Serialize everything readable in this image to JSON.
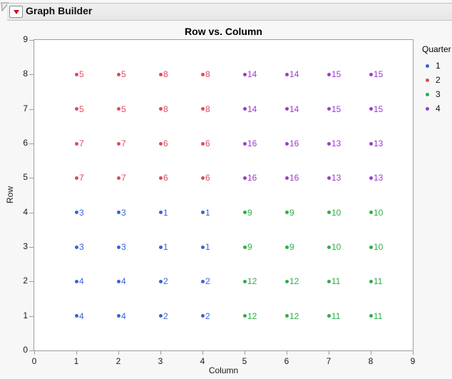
{
  "window": {
    "title": "Graph Builder",
    "disclosure_icon": "open-outline-triangle",
    "menu_icon": "red-triangle"
  },
  "colors": {
    "page_bg": "#f7f7f7",
    "header_bg": "#ebebeb",
    "plot_bg": "#ffffff",
    "axis": "#9e9e9e",
    "text": "#1a1a1a"
  },
  "chart_data": {
    "type": "scatter",
    "title": "Row vs. Column",
    "xlabel": "Column",
    "ylabel": "Row",
    "xlim": [
      0,
      9
    ],
    "ylim": [
      0,
      9
    ],
    "xticks": [
      0,
      1,
      2,
      3,
      4,
      5,
      6,
      7,
      8,
      9
    ],
    "yticks": [
      0,
      1,
      2,
      3,
      4,
      5,
      6,
      7,
      8,
      9
    ],
    "grid": false,
    "legend": {
      "title": "Quarter",
      "position": "right",
      "entries": [
        {
          "label": "1",
          "color": "#3a63d4"
        },
        {
          "label": "2",
          "color": "#dd4b5c"
        },
        {
          "label": "3",
          "color": "#2fae49"
        },
        {
          "label": "4",
          "color": "#9d3ccc"
        }
      ]
    },
    "points_format": [
      "x",
      "y",
      "label"
    ],
    "series": [
      {
        "name": "1",
        "color": "#3a63d4",
        "points": [
          [
            1,
            4,
            "3"
          ],
          [
            2,
            4,
            "3"
          ],
          [
            3,
            4,
            "1"
          ],
          [
            4,
            4,
            "1"
          ],
          [
            1,
            3,
            "3"
          ],
          [
            2,
            3,
            "3"
          ],
          [
            3,
            3,
            "1"
          ],
          [
            4,
            3,
            "1"
          ],
          [
            1,
            2,
            "4"
          ],
          [
            2,
            2,
            "4"
          ],
          [
            3,
            2,
            "2"
          ],
          [
            4,
            2,
            "2"
          ],
          [
            1,
            1,
            "4"
          ],
          [
            2,
            1,
            "4"
          ],
          [
            3,
            1,
            "2"
          ],
          [
            4,
            1,
            "2"
          ]
        ]
      },
      {
        "name": "2",
        "color": "#dd4b5c",
        "points": [
          [
            1,
            8,
            "5"
          ],
          [
            2,
            8,
            "5"
          ],
          [
            3,
            8,
            "8"
          ],
          [
            4,
            8,
            "8"
          ],
          [
            1,
            7,
            "5"
          ],
          [
            2,
            7,
            "5"
          ],
          [
            3,
            7,
            "8"
          ],
          [
            4,
            7,
            "8"
          ],
          [
            1,
            6,
            "7"
          ],
          [
            2,
            6,
            "7"
          ],
          [
            3,
            6,
            "6"
          ],
          [
            4,
            6,
            "6"
          ],
          [
            1,
            5,
            "7"
          ],
          [
            2,
            5,
            "7"
          ],
          [
            3,
            5,
            "6"
          ],
          [
            4,
            5,
            "6"
          ]
        ]
      },
      {
        "name": "3",
        "color": "#2fae49",
        "points": [
          [
            5,
            4,
            "9"
          ],
          [
            6,
            4,
            "9"
          ],
          [
            7,
            4,
            "10"
          ],
          [
            8,
            4,
            "10"
          ],
          [
            5,
            3,
            "9"
          ],
          [
            6,
            3,
            "9"
          ],
          [
            7,
            3,
            "10"
          ],
          [
            8,
            3,
            "10"
          ],
          [
            5,
            2,
            "12"
          ],
          [
            6,
            2,
            "12"
          ],
          [
            7,
            2,
            "11"
          ],
          [
            8,
            2,
            "11"
          ],
          [
            5,
            1,
            "12"
          ],
          [
            6,
            1,
            "12"
          ],
          [
            7,
            1,
            "11"
          ],
          [
            8,
            1,
            "11"
          ]
        ]
      },
      {
        "name": "4",
        "color": "#9d3ccc",
        "points": [
          [
            5,
            8,
            "14"
          ],
          [
            6,
            8,
            "14"
          ],
          [
            7,
            8,
            "15"
          ],
          [
            8,
            8,
            "15"
          ],
          [
            5,
            7,
            "14"
          ],
          [
            6,
            7,
            "14"
          ],
          [
            7,
            7,
            "15"
          ],
          [
            8,
            7,
            "15"
          ],
          [
            5,
            6,
            "16"
          ],
          [
            6,
            6,
            "16"
          ],
          [
            7,
            6,
            "13"
          ],
          [
            8,
            6,
            "13"
          ],
          [
            5,
            5,
            "16"
          ],
          [
            6,
            5,
            "16"
          ],
          [
            7,
            5,
            "13"
          ],
          [
            8,
            5,
            "13"
          ]
        ]
      }
    ]
  }
}
